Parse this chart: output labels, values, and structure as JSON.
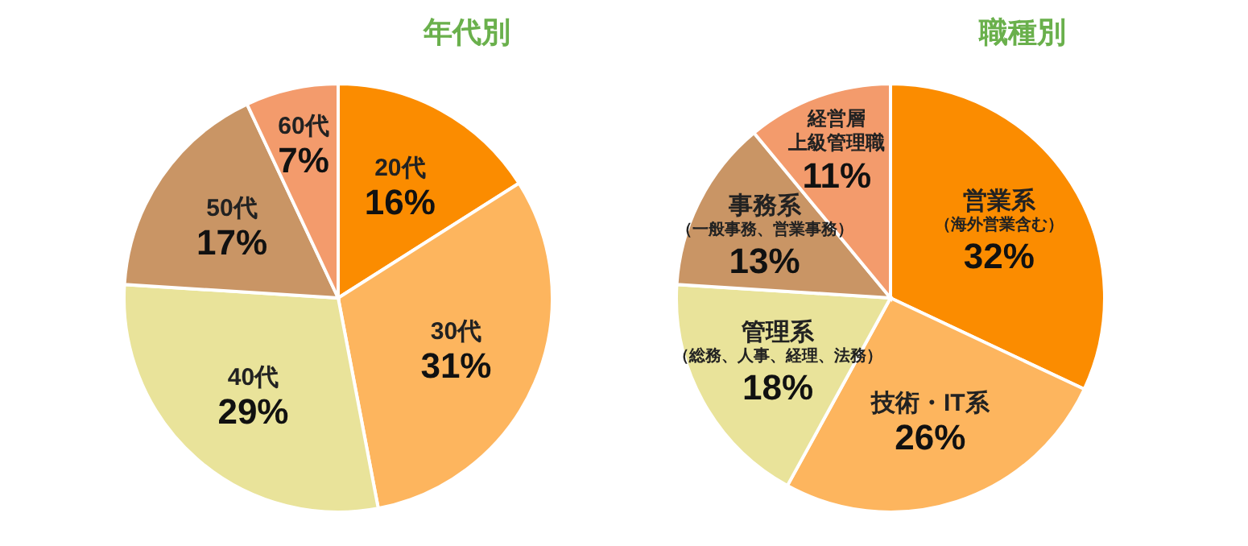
{
  "chart_data": [
    {
      "type": "pie",
      "title": "年代別",
      "categories": [
        "20代",
        "30代",
        "40代",
        "50代",
        "60代"
      ],
      "values": [
        16,
        31,
        29,
        17,
        7
      ],
      "value_labels": [
        "16%",
        "31%",
        "29%",
        "17%",
        "7%"
      ],
      "colors": [
        "#fb8c00",
        "#fdb55e",
        "#e9e39a",
        "#c99565",
        "#f39b6c"
      ]
    },
    {
      "type": "pie",
      "title": "職種別",
      "categories": [
        "営業系（海外営業含む）",
        "技術・IT系",
        "管理系（総務、人事、経理、法務）",
        "事務系（一般事務、営業事務）",
        "経営層上級管理職"
      ],
      "values": [
        32,
        26,
        18,
        13,
        11
      ],
      "value_labels": [
        "32%",
        "26%",
        "18%",
        "13%",
        "11%"
      ],
      "colors": [
        "#fb8c00",
        "#fdb55e",
        "#e9e39a",
        "#c99565",
        "#f39b6c"
      ]
    }
  ]
}
